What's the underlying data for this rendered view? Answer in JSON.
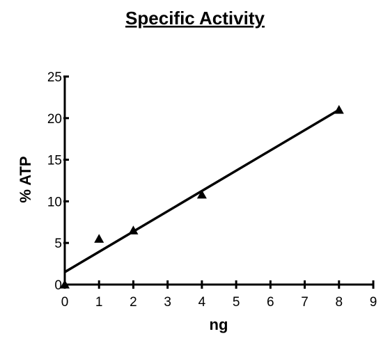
{
  "chart_data": {
    "type": "scatter",
    "title": "Specific Activity",
    "xlabel": "ng",
    "ylabel": "% ATP",
    "xlim": [
      0,
      9
    ],
    "ylim": [
      0,
      25
    ],
    "x_ticks": [
      "0",
      "1",
      "2",
      "3",
      "4",
      "5",
      "6",
      "7",
      "8",
      "9"
    ],
    "y_ticks": [
      "0",
      "5",
      "10",
      "15",
      "20",
      "25"
    ],
    "grid": false,
    "marker": "triangle",
    "series": [
      {
        "points": [
          {
            "x": 0,
            "y": 0
          },
          {
            "x": 1,
            "y": 5.5
          },
          {
            "x": 2,
            "y": 6.5
          },
          {
            "x": 4,
            "y": 10.8
          },
          {
            "x": 8,
            "y": 21
          }
        ]
      }
    ],
    "fit_line": {
      "x": [
        0,
        8
      ],
      "y": [
        1.5,
        21
      ]
    }
  }
}
